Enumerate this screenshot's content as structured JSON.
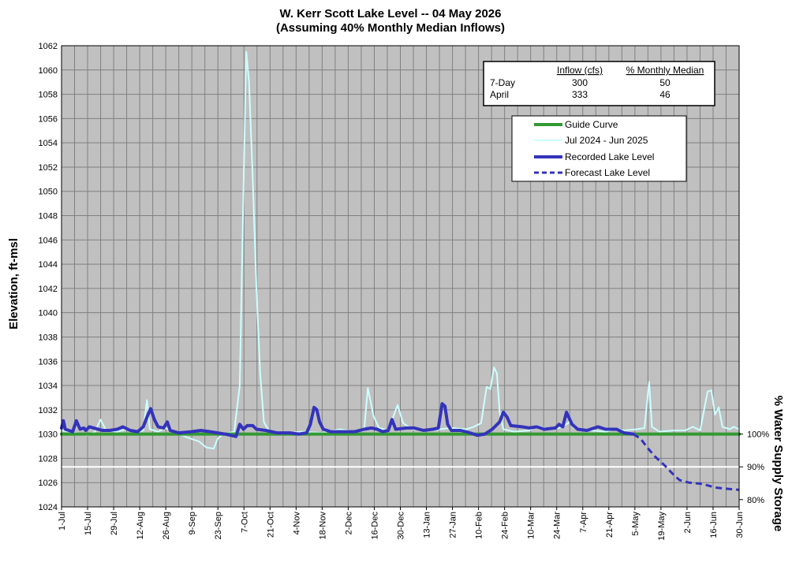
{
  "chart_data": {
    "type": "line",
    "title": "W. Kerr Scott Lake Level --  04 May 2026",
    "subtitle": "(Assuming 40% Monthly Median Inflows)",
    "ylabel": "Elevation, ft-msl",
    "ylabel_right": "% Water Supply Storage",
    "ylim": [
      1024,
      1062
    ],
    "ytick_step": 2,
    "grid": true,
    "x_tick_labels": [
      "1-Jul",
      "15-Jul",
      "29-Jul",
      "12-Aug",
      "26-Aug",
      "9-Sep",
      "23-Sep",
      "7-Oct",
      "21-Oct",
      "4-Nov",
      "18-Nov",
      "2-Dec",
      "16-Dec",
      "30-Dec",
      "13-Jan",
      "27-Jan",
      "10-Feb",
      "24-Feb",
      "10-Mar",
      "24-Mar",
      "7-Apr",
      "21-Apr",
      "5-May",
      "19-May",
      "2-Jun",
      "16-Jun",
      "30-Jun"
    ],
    "xlim": [
      0,
      365
    ],
    "reference_line": {
      "value": 1027.3,
      "color": "#ffffff"
    },
    "right_ticks": [
      {
        "label": "100%",
        "value": 1030
      },
      {
        "label": "90%",
        "value": 1027.3
      },
      {
        "label": "80%",
        "value": 1024.6
      }
    ],
    "inflow_table": {
      "headers": [
        "",
        "Inflow (cfs)",
        "% Monthly Median"
      ],
      "rows": [
        [
          "7-Day",
          "300",
          "50"
        ],
        [
          "April",
          "333",
          "46"
        ]
      ]
    },
    "legend_position": "top-right",
    "series": [
      {
        "name": "Guide Curve",
        "color": "#339933",
        "style": "solid",
        "width": 4,
        "points": [
          [
            0,
            1030
          ],
          [
            365,
            1030
          ]
        ]
      },
      {
        "name": "Jul 2024 - Jun 2025",
        "color": "#ccffff",
        "style": "solid",
        "width": 2,
        "points": [
          [
            0,
            1030.3
          ],
          [
            8,
            1030.1
          ],
          [
            14,
            1029.9
          ],
          [
            18,
            1030.2
          ],
          [
            21,
            1031.2
          ],
          [
            24,
            1030.3
          ],
          [
            30,
            1030.2
          ],
          [
            35,
            1030.4
          ],
          [
            40,
            1030.1
          ],
          [
            44,
            1030.3
          ],
          [
            46,
            1032.8
          ],
          [
            47.5,
            1030.4
          ],
          [
            52,
            1030.2
          ],
          [
            56,
            1030.5
          ],
          [
            62,
            1030.1
          ],
          [
            68,
            1029.7
          ],
          [
            74,
            1029.4
          ],
          [
            78,
            1028.9
          ],
          [
            82,
            1028.8
          ],
          [
            84,
            1029.6
          ],
          [
            87,
            1030.0
          ],
          [
            93,
            1030.2
          ],
          [
            96,
            1034
          ],
          [
            98,
            1050
          ],
          [
            99.5,
            1061.5
          ],
          [
            101,
            1059
          ],
          [
            103,
            1051
          ],
          [
            105,
            1042
          ],
          [
            107,
            1035
          ],
          [
            109,
            1031
          ],
          [
            112,
            1030.2
          ],
          [
            120,
            1030.1
          ],
          [
            130,
            1030.2
          ],
          [
            140,
            1030.1
          ],
          [
            150,
            1030.4
          ],
          [
            158,
            1030.2
          ],
          [
            163,
            1030.3
          ],
          [
            165,
            1033.8
          ],
          [
            168,
            1031.5
          ],
          [
            171,
            1030.5
          ],
          [
            176,
            1030.3
          ],
          [
            181,
            1032.4
          ],
          [
            184,
            1030.9
          ],
          [
            189,
            1030.4
          ],
          [
            198,
            1030.3
          ],
          [
            210,
            1030.5
          ],
          [
            218,
            1030.4
          ],
          [
            222,
            1030.6
          ],
          [
            226,
            1030.9
          ],
          [
            229,
            1033.9
          ],
          [
            231,
            1033.7
          ],
          [
            233,
            1035.5
          ],
          [
            234.5,
            1035
          ],
          [
            236,
            1031.8
          ],
          [
            238,
            1030.4
          ],
          [
            244,
            1030.2
          ],
          [
            252,
            1030.3
          ],
          [
            256,
            1030.7
          ],
          [
            262,
            1030.4
          ],
          [
            268,
            1030.5
          ],
          [
            273,
            1030.9
          ],
          [
            274,
            1031.2
          ],
          [
            276,
            1030.5
          ],
          [
            285,
            1030.3
          ],
          [
            293,
            1030.2
          ],
          [
            298,
            1030.4
          ],
          [
            303,
            1030.3
          ],
          [
            310,
            1030.4
          ],
          [
            314,
            1030.5
          ],
          [
            316.5,
            1034.3
          ],
          [
            318,
            1030.6
          ],
          [
            322,
            1030.2
          ],
          [
            330,
            1030.3
          ],
          [
            336,
            1030.3
          ],
          [
            340,
            1030.6
          ],
          [
            344,
            1030.3
          ],
          [
            348,
            1033.5
          ],
          [
            350,
            1033.6
          ],
          [
            352,
            1031.6
          ],
          [
            354,
            1032.2
          ],
          [
            356,
            1030.6
          ],
          [
            360,
            1030.4
          ],
          [
            362,
            1030.6
          ],
          [
            365,
            1030.4
          ]
        ]
      },
      {
        "name": "Recorded Lake Level",
        "color": "#3333bb",
        "style": "solid",
        "width": 4,
        "points": [
          [
            0,
            1030.5
          ],
          [
            1,
            1031.1
          ],
          [
            2,
            1030.4
          ],
          [
            6,
            1030.2
          ],
          [
            8,
            1031.1
          ],
          [
            10,
            1030.4
          ],
          [
            12,
            1030.5
          ],
          [
            13,
            1030.3
          ],
          [
            15,
            1030.6
          ],
          [
            22,
            1030.3
          ],
          [
            26,
            1030.3
          ],
          [
            30,
            1030.4
          ],
          [
            33,
            1030.6
          ],
          [
            37,
            1030.3
          ],
          [
            41,
            1030.2
          ],
          [
            44,
            1030.6
          ],
          [
            46,
            1031.4
          ],
          [
            48,
            1032.1
          ],
          [
            50,
            1031.2
          ],
          [
            52,
            1030.6
          ],
          [
            55,
            1030.5
          ],
          [
            57,
            1031.0
          ],
          [
            58.5,
            1030.3
          ],
          [
            63,
            1030.1
          ],
          [
            70,
            1030.2
          ],
          [
            75,
            1030.3
          ],
          [
            80,
            1030.2
          ],
          [
            88,
            1030.0
          ],
          [
            94,
            1029.8
          ],
          [
            96,
            1030.8
          ],
          [
            98,
            1030.4
          ],
          [
            100,
            1030.7
          ],
          [
            103,
            1030.7
          ],
          [
            105,
            1030.4
          ],
          [
            110,
            1030.3
          ],
          [
            116,
            1030.1
          ],
          [
            123,
            1030.1
          ],
          [
            128,
            1030.0
          ],
          [
            132,
            1030.1
          ],
          [
            134,
            1030.8
          ],
          [
            136,
            1032.2
          ],
          [
            137.5,
            1032
          ],
          [
            139,
            1031
          ],
          [
            141,
            1030.4
          ],
          [
            145,
            1030.2
          ],
          [
            150,
            1030.2
          ],
          [
            158,
            1030.2
          ],
          [
            163,
            1030.4
          ],
          [
            167,
            1030.5
          ],
          [
            170,
            1030.4
          ],
          [
            173,
            1030.2
          ],
          [
            176,
            1030.3
          ],
          [
            178,
            1031.2
          ],
          [
            180,
            1030.4
          ],
          [
            186,
            1030.5
          ],
          [
            190,
            1030.5
          ],
          [
            195,
            1030.3
          ],
          [
            200,
            1030.4
          ],
          [
            203,
            1030.5
          ],
          [
            205,
            1032.5
          ],
          [
            206.5,
            1032.3
          ],
          [
            208,
            1030.8
          ],
          [
            210,
            1030.3
          ],
          [
            215,
            1030.3
          ],
          [
            220,
            1030.1
          ],
          [
            224,
            1029.9
          ],
          [
            228,
            1030.0
          ],
          [
            232,
            1030.4
          ],
          [
            236,
            1031.0
          ],
          [
            238,
            1031.8
          ],
          [
            240,
            1031.4
          ],
          [
            242,
            1030.7
          ],
          [
            248,
            1030.6
          ],
          [
            252,
            1030.5
          ],
          [
            256,
            1030.6
          ],
          [
            260,
            1030.4
          ],
          [
            266,
            1030.5
          ],
          [
            268,
            1030.8
          ],
          [
            270,
            1030.6
          ],
          [
            272,
            1031.8
          ],
          [
            275,
            1030.8
          ],
          [
            278,
            1030.4
          ],
          [
            283,
            1030.3
          ],
          [
            289,
            1030.6
          ],
          [
            293,
            1030.4
          ],
          [
            299,
            1030.4
          ],
          [
            303,
            1030.1
          ],
          [
            308,
            1030.0
          ]
        ]
      },
      {
        "name": "Forecast Lake Level",
        "color": "#3333bb",
        "style": "dashed",
        "width": 3,
        "points": [
          [
            308,
            1030.0
          ],
          [
            312,
            1029.6
          ],
          [
            316,
            1028.8
          ],
          [
            320,
            1028.1
          ],
          [
            325,
            1027.4
          ],
          [
            330,
            1026.6
          ],
          [
            333,
            1026.2
          ],
          [
            338,
            1026.0
          ],
          [
            345,
            1025.9
          ],
          [
            352,
            1025.6
          ],
          [
            358,
            1025.5
          ],
          [
            365,
            1025.4
          ]
        ]
      }
    ]
  }
}
